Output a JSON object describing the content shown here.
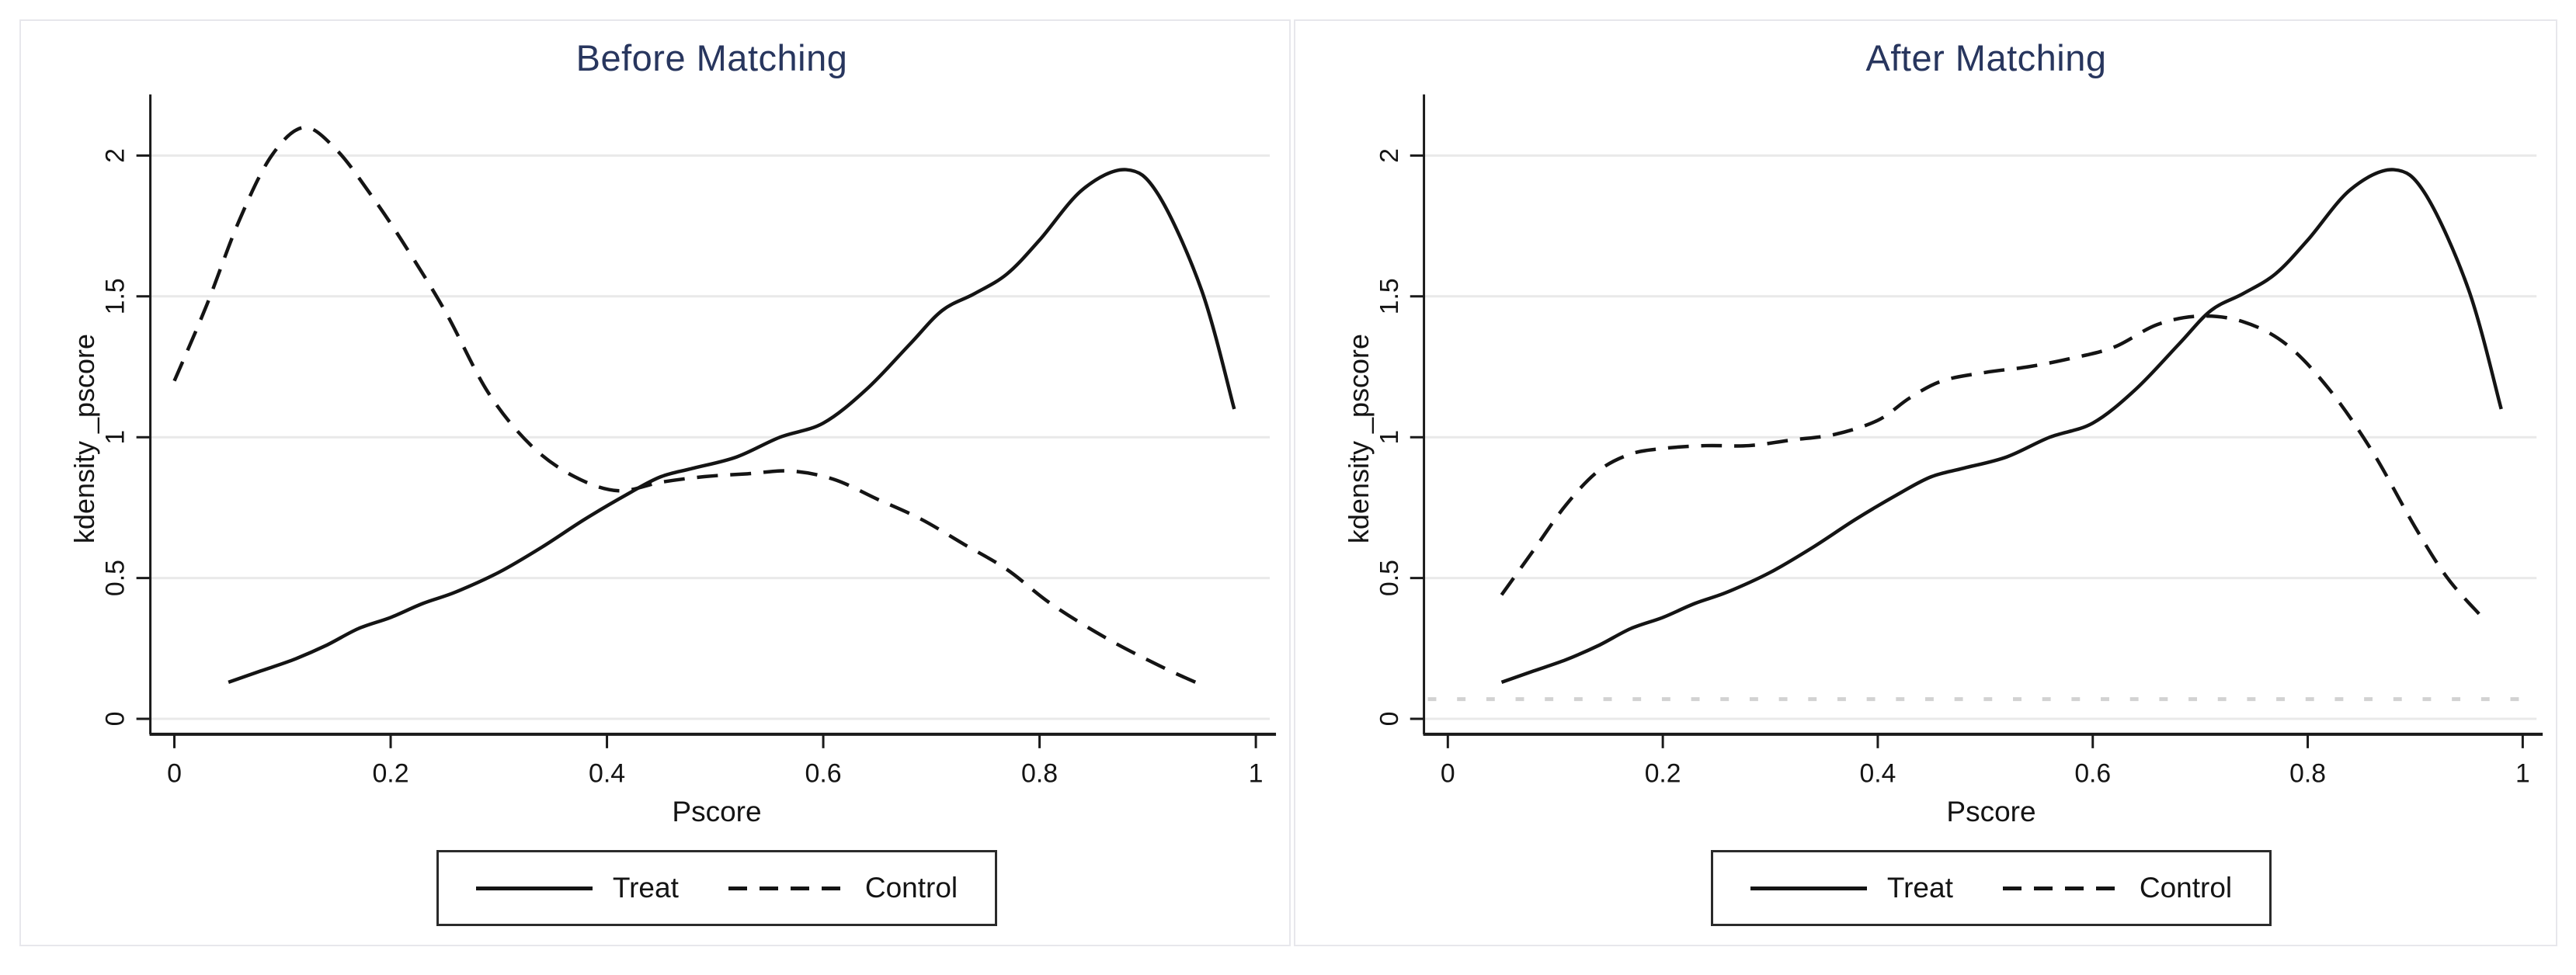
{
  "colors": {
    "title": "#28365e",
    "line": "#141414",
    "grid": "#e9e9e9",
    "panel_border": "#e7e7ec",
    "faint_rule": "#d2d2d2",
    "axis": "#1a1a1a"
  },
  "chart_data": [
    {
      "type": "line",
      "title": "Before Matching",
      "xlabel": "Pscore",
      "ylabel": "kdensity _pscore",
      "xlim": [
        0,
        1
      ],
      "ylim": [
        0,
        2
      ],
      "grid": true,
      "legend_position": "bottom",
      "xticks": [
        0,
        0.2,
        0.4,
        0.6,
        0.8,
        1
      ],
      "xtick_labels": [
        "0",
        "0.2",
        "0.4",
        "0.6",
        "0.8",
        "1"
      ],
      "yticks": [
        0,
        0.5,
        1,
        1.5,
        2
      ],
      "ytick_labels": [
        "0",
        "0.5",
        "1",
        "1.5",
        "2"
      ],
      "series": [
        {
          "name": "Treat",
          "style": "solid",
          "x": [
            0.05,
            0.08,
            0.11,
            0.14,
            0.17,
            0.2,
            0.23,
            0.26,
            0.3,
            0.34,
            0.38,
            0.42,
            0.45,
            0.48,
            0.52,
            0.56,
            0.6,
            0.64,
            0.68,
            0.71,
            0.74,
            0.77,
            0.8,
            0.84,
            0.88,
            0.91,
            0.95,
            0.98
          ],
          "y": [
            0.13,
            0.17,
            0.21,
            0.26,
            0.32,
            0.36,
            0.41,
            0.45,
            0.52,
            0.61,
            0.71,
            0.8,
            0.86,
            0.89,
            0.93,
            1.0,
            1.05,
            1.17,
            1.33,
            1.45,
            1.51,
            1.58,
            1.7,
            1.88,
            1.95,
            1.86,
            1.52,
            1.1
          ]
        },
        {
          "name": "Control",
          "style": "dashed",
          "x": [
            0.0,
            0.03,
            0.06,
            0.09,
            0.12,
            0.15,
            0.18,
            0.21,
            0.25,
            0.29,
            0.33,
            0.37,
            0.41,
            0.45,
            0.49,
            0.53,
            0.57,
            0.61,
            0.65,
            0.69,
            0.73,
            0.77,
            0.81,
            0.86,
            0.91,
            0.95
          ],
          "y": [
            1.2,
            1.47,
            1.77,
            2.0,
            2.1,
            2.02,
            1.87,
            1.7,
            1.45,
            1.16,
            0.97,
            0.86,
            0.81,
            0.84,
            0.86,
            0.87,
            0.88,
            0.85,
            0.78,
            0.71,
            0.62,
            0.53,
            0.41,
            0.29,
            0.19,
            0.12
          ]
        }
      ]
    },
    {
      "type": "line",
      "title": "After Matching",
      "xlabel": "Pscore",
      "ylabel": "kdensity _pscore",
      "xlim": [
        0,
        1
      ],
      "ylim": [
        0,
        2
      ],
      "grid": true,
      "legend_position": "bottom",
      "faint_rule_y": 0.07,
      "xticks": [
        0,
        0.2,
        0.4,
        0.6,
        0.8,
        1
      ],
      "xtick_labels": [
        "0",
        "0.2",
        "0.4",
        "0.6",
        "0.8",
        "1"
      ],
      "yticks": [
        0,
        0.5,
        1,
        1.5,
        2
      ],
      "ytick_labels": [
        "0",
        "0.5",
        "1",
        "1.5",
        "2"
      ],
      "series": [
        {
          "name": "Treat",
          "style": "solid",
          "x": [
            0.05,
            0.08,
            0.11,
            0.14,
            0.17,
            0.2,
            0.23,
            0.26,
            0.3,
            0.34,
            0.38,
            0.42,
            0.45,
            0.48,
            0.52,
            0.56,
            0.6,
            0.64,
            0.68,
            0.71,
            0.74,
            0.77,
            0.8,
            0.84,
            0.88,
            0.91,
            0.95,
            0.98
          ],
          "y": [
            0.13,
            0.17,
            0.21,
            0.26,
            0.32,
            0.36,
            0.41,
            0.45,
            0.52,
            0.61,
            0.71,
            0.8,
            0.86,
            0.89,
            0.93,
            1.0,
            1.05,
            1.17,
            1.33,
            1.45,
            1.51,
            1.58,
            1.7,
            1.88,
            1.95,
            1.86,
            1.52,
            1.1
          ]
        },
        {
          "name": "Control",
          "style": "dashed",
          "x": [
            0.05,
            0.08,
            0.11,
            0.14,
            0.17,
            0.2,
            0.24,
            0.28,
            0.32,
            0.36,
            0.4,
            0.43,
            0.46,
            0.5,
            0.54,
            0.58,
            0.62,
            0.66,
            0.7,
            0.74,
            0.78,
            0.82,
            0.86,
            0.9,
            0.93,
            0.96
          ],
          "y": [
            0.44,
            0.6,
            0.76,
            0.88,
            0.94,
            0.96,
            0.97,
            0.97,
            0.99,
            1.01,
            1.06,
            1.14,
            1.2,
            1.23,
            1.25,
            1.28,
            1.32,
            1.4,
            1.43,
            1.41,
            1.33,
            1.17,
            0.95,
            0.68,
            0.5,
            0.37
          ]
        }
      ]
    }
  ]
}
